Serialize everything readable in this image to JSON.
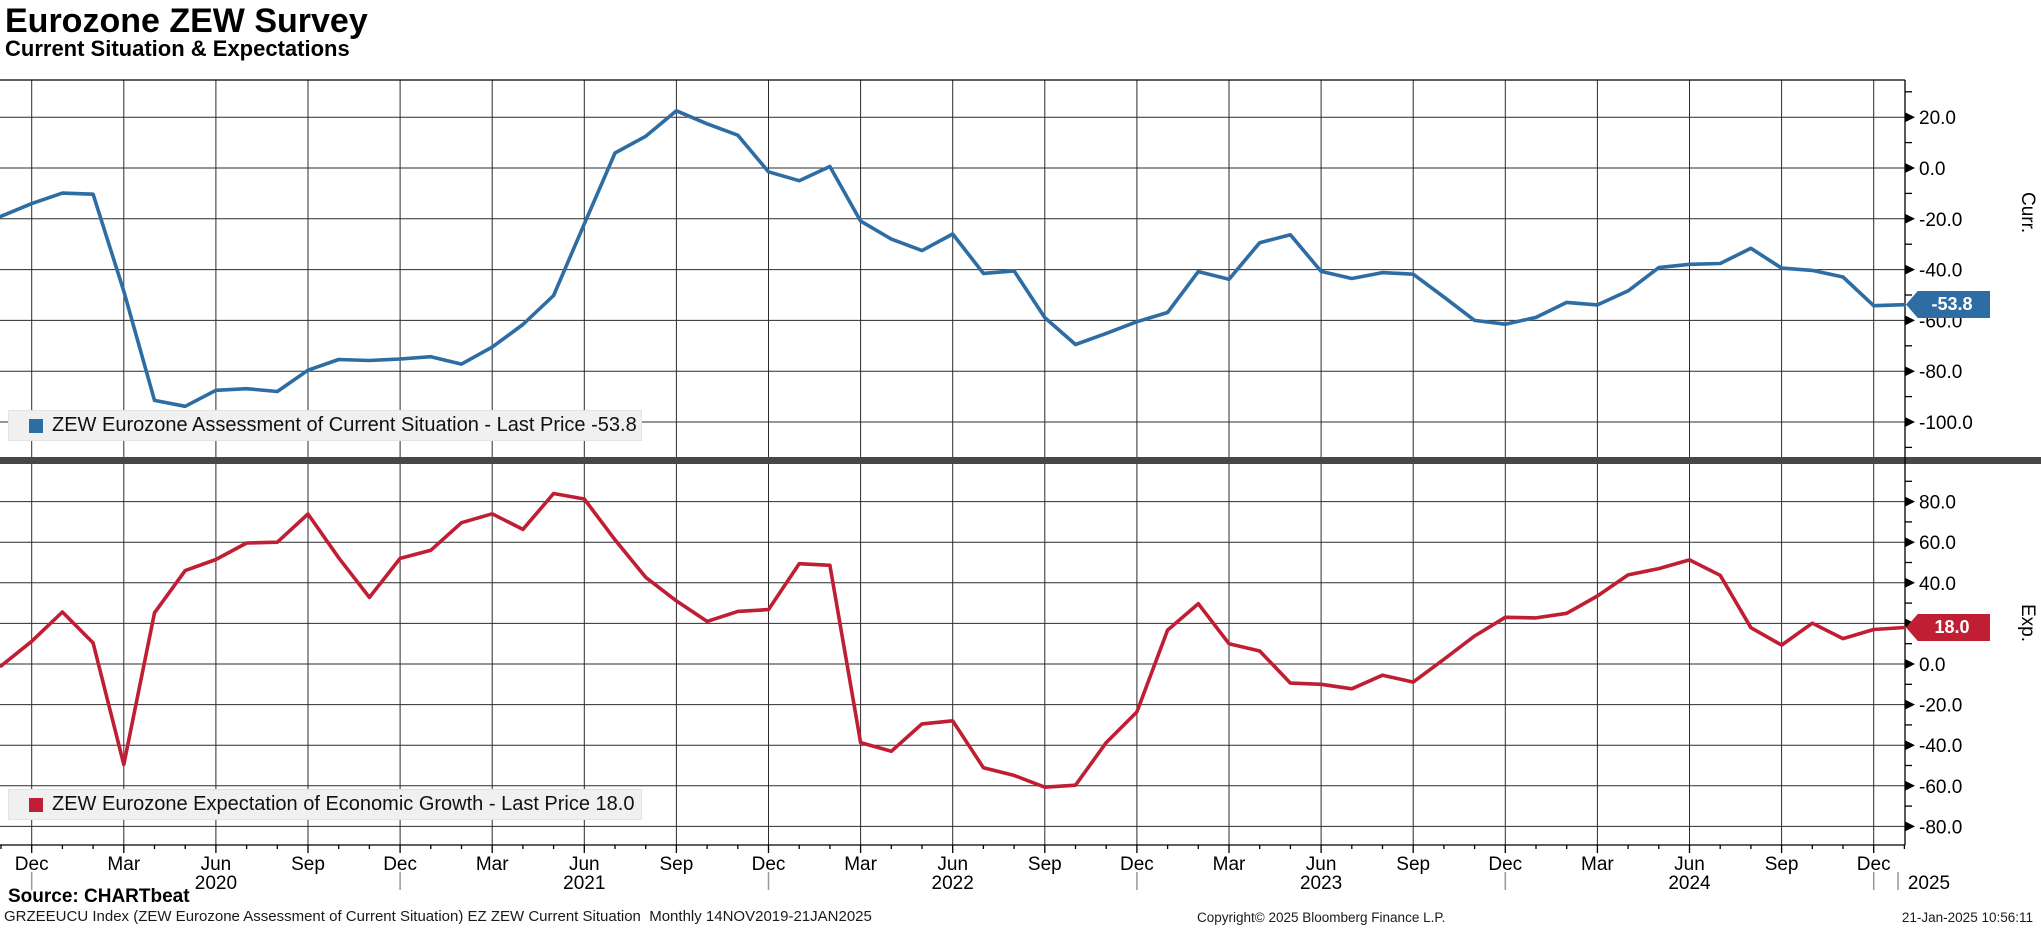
{
  "header": {
    "title": "Eurozone ZEW Survey",
    "subtitle": "Current Situation & Expectations"
  },
  "chart_data": {
    "type": "line",
    "frequency": "Monthly",
    "date_range": "14NOV2019-21JAN2025",
    "grid": "on",
    "months": [
      "2019-11",
      "2019-12",
      "2020-01",
      "2020-02",
      "2020-03",
      "2020-04",
      "2020-05",
      "2020-06",
      "2020-07",
      "2020-08",
      "2020-09",
      "2020-10",
      "2020-11",
      "2020-12",
      "2021-01",
      "2021-02",
      "2021-03",
      "2021-04",
      "2021-05",
      "2021-06",
      "2021-07",
      "2021-08",
      "2021-09",
      "2021-10",
      "2021-11",
      "2021-12",
      "2022-01",
      "2022-02",
      "2022-03",
      "2022-04",
      "2022-05",
      "2022-06",
      "2022-07",
      "2022-08",
      "2022-09",
      "2022-10",
      "2022-11",
      "2022-12",
      "2023-01",
      "2023-02",
      "2023-03",
      "2023-04",
      "2023-05",
      "2023-06",
      "2023-07",
      "2023-08",
      "2023-09",
      "2023-10",
      "2023-11",
      "2023-12",
      "2024-01",
      "2024-02",
      "2024-03",
      "2024-04",
      "2024-05",
      "2024-06",
      "2024-07",
      "2024-08",
      "2024-09",
      "2024-10",
      "2024-11",
      "2024-12",
      "2025-01"
    ],
    "x_quarter_ticks": [
      {
        "i": 1,
        "label": "Dec"
      },
      {
        "i": 4,
        "label": "Mar"
      },
      {
        "i": 7,
        "label": "Jun"
      },
      {
        "i": 10,
        "label": "Sep"
      },
      {
        "i": 13,
        "label": "Dec"
      },
      {
        "i": 16,
        "label": "Mar"
      },
      {
        "i": 19,
        "label": "Jun"
      },
      {
        "i": 22,
        "label": "Sep"
      },
      {
        "i": 25,
        "label": "Dec"
      },
      {
        "i": 28,
        "label": "Mar"
      },
      {
        "i": 31,
        "label": "Jun"
      },
      {
        "i": 34,
        "label": "Sep"
      },
      {
        "i": 37,
        "label": "Dec"
      },
      {
        "i": 40,
        "label": "Mar"
      },
      {
        "i": 43,
        "label": "Jun"
      },
      {
        "i": 46,
        "label": "Sep"
      },
      {
        "i": 49,
        "label": "Dec"
      },
      {
        "i": 52,
        "label": "Mar"
      },
      {
        "i": 55,
        "label": "Jun"
      },
      {
        "i": 58,
        "label": "Sep"
      },
      {
        "i": 61,
        "label": "Dec"
      }
    ],
    "x_year_labels": [
      {
        "i": 7,
        "label": "2020"
      },
      {
        "i": 19,
        "label": "2021"
      },
      {
        "i": 31,
        "label": "2022"
      },
      {
        "i": 43,
        "label": "2023"
      },
      {
        "i": 55,
        "label": "2024"
      },
      {
        "i": 62.8,
        "label": "2025"
      }
    ],
    "year_separator_is": [
      1,
      13,
      25,
      37,
      49,
      61,
      62.1
    ],
    "panels": [
      {
        "id": "curr",
        "series_name": "ZEW Eurozone Assessment of Current Situation",
        "legend_label": "ZEW Eurozone Assessment of Current Situation - Last Price -53.8",
        "last_price_tag": "-53.8",
        "axis_title": "Curr.",
        "color": "#2e6ca4",
        "ytick_labels": [
          "20.0",
          "0.0",
          "-20.0",
          "-40.0",
          "-60.0",
          "-80.0",
          "-100.0"
        ],
        "ytick_values": [
          20,
          0,
          -20,
          -40,
          -60,
          -80,
          -100
        ],
        "ylim": [
          -113,
          42
        ],
        "values": [
          -19.0,
          -14.0,
          -9.9,
          -10.3,
          -48.5,
          -91.5,
          -93.8,
          -87.5,
          -86.9,
          -88.0,
          -79.6,
          -75.4,
          -75.8,
          -75.2,
          -74.3,
          -77.2,
          -70.5,
          -61.6,
          -50.2,
          -22.0,
          5.9,
          12.5,
          22.5,
          17.4,
          12.9,
          -1.5,
          -5.0,
          0.6,
          -20.9,
          -28.0,
          -32.5,
          -26.0,
          -41.5,
          -40.5,
          -58.9,
          -69.5,
          -65.1,
          -60.5,
          -56.9,
          -40.8,
          -43.8,
          -29.4,
          -26.3,
          -40.7,
          -43.5,
          -41.2,
          -41.8,
          -50.8,
          -60.0,
          -61.5,
          -58.8,
          -52.9,
          -53.9,
          -48.4,
          -39.2,
          -37.9,
          -37.6,
          -31.6,
          -39.4,
          -40.3,
          -42.9,
          -54.2,
          -53.8
        ]
      },
      {
        "id": "exp",
        "series_name": "ZEW Eurozone Expectation of Economic Growth",
        "legend_label": "ZEW Eurozone Expectation of Economic Growth - Last Price 18.0",
        "last_price_tag": "18.0",
        "axis_title": "Exp.",
        "color": "#bf1e33",
        "ytick_labels": [
          "80.0",
          "60.0",
          "40.0",
          "20.0",
          "0.0",
          "-20.0",
          "-40.0",
          "-60.0",
          "-80.0"
        ],
        "ytick_values": [
          80,
          60,
          40,
          20,
          0,
          -20,
          -40,
          -60,
          -80
        ],
        "ylim": [
          -89,
          98
        ],
        "values": [
          -1.0,
          11.2,
          25.6,
          10.4,
          -49.5,
          25.2,
          46.0,
          51.5,
          59.6,
          60.0,
          73.9,
          52.3,
          32.8,
          52.0,
          56.0,
          69.6,
          74.0,
          66.3,
          84.0,
          81.3,
          61.2,
          42.7,
          31.1,
          21.0,
          25.9,
          26.8,
          49.4,
          48.6,
          -38.7,
          -43.0,
          -29.5,
          -28.0,
          -51.1,
          -54.9,
          -60.7,
          -59.7,
          -38.7,
          -23.6,
          16.7,
          29.7,
          10.0,
          6.4,
          -9.4,
          -10.0,
          -12.2,
          -5.5,
          -8.9,
          2.3,
          13.8,
          23.0,
          22.7,
          25.0,
          33.5,
          43.9,
          47.0,
          51.3,
          43.7,
          17.9,
          9.3,
          20.1,
          12.5,
          17.0,
          18.0
        ]
      }
    ]
  },
  "footer": {
    "source": "Source: CHARTbeat",
    "description": "GRZEEUCU Index (ZEW Eurozone Assessment of Current Situation) EZ ZEW Current Situation  Monthly 14NOV2019-21JAN2025",
    "copyright": "Copyright© 2025 Bloomberg Finance L.P.",
    "timestamp": "21-Jan-2025 10:56:11"
  }
}
